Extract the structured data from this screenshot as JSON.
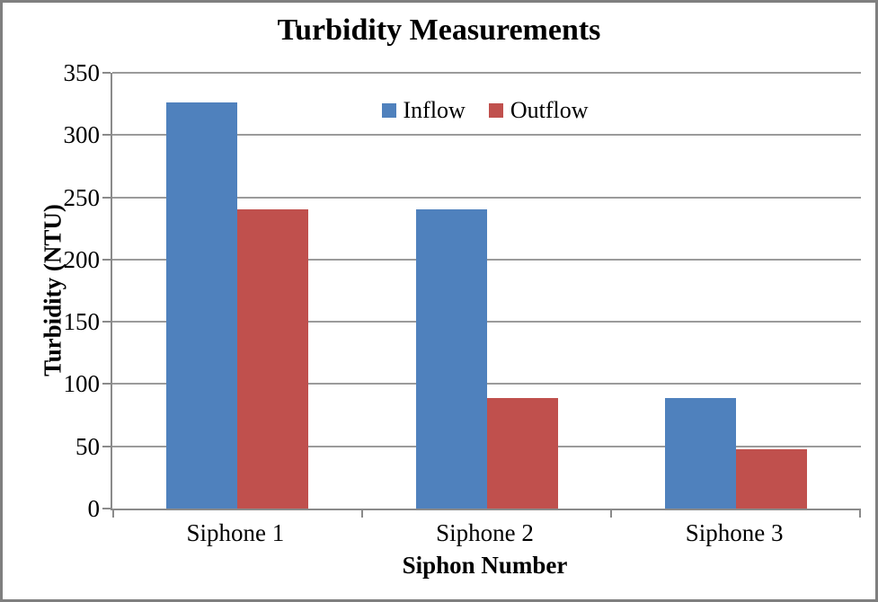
{
  "chart": {
    "colors": {
      "inflow": "#4f81bd",
      "outflow": "#c0504d",
      "gridline": "#9b9b9b",
      "axis": "#8a8a8a",
      "frame_border": "#7f7f7f",
      "text": "#000000"
    }
  },
  "chart_data": {
    "type": "bar",
    "title": "Turbidity Measurements",
    "xlabel": "Siphon Number",
    "ylabel": "Turbidity (NTU)",
    "categories": [
      "Siphone 1",
      "Siphone 2",
      "Siphone 3"
    ],
    "series": [
      {
        "name": "Inflow",
        "color": "#4f81bd",
        "values": [
          326,
          240,
          89
        ]
      },
      {
        "name": "Outflow",
        "color": "#c0504d",
        "values": [
          240,
          89,
          48
        ]
      }
    ],
    "ylim": [
      0,
      350
    ],
    "yticks": [
      0,
      50,
      100,
      150,
      200,
      250,
      300,
      350
    ],
    "grid": true,
    "legend_position": "top-center",
    "legend_labels": [
      "Inflow",
      "Outflow"
    ]
  }
}
